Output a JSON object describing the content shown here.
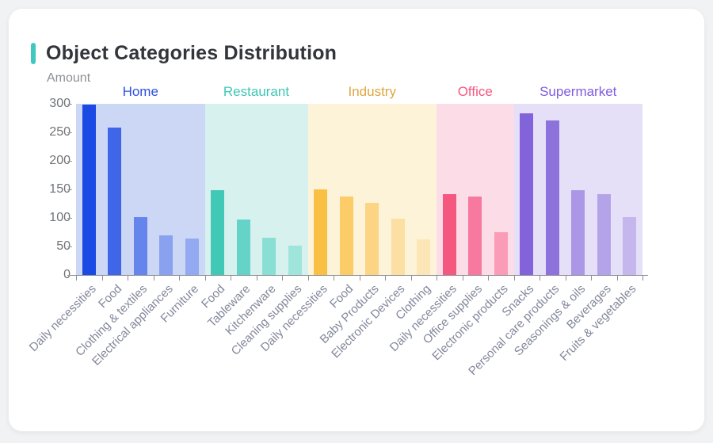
{
  "card": {
    "title": "Object Categories Distribution",
    "accent_color": "#3fc8c0"
  },
  "chart_data": {
    "type": "bar",
    "title": "Object Categories Distribution",
    "ylabel": "Amount",
    "xlabel": "",
    "ylim": [
      0,
      300
    ],
    "y_ticks": [
      0,
      50,
      100,
      150,
      200,
      250,
      300
    ],
    "grid": false,
    "legend_position": "inline-group-headers",
    "axis_color": "#8f9094",
    "groups": [
      {
        "name": "Home",
        "label_color": "#2e51e3",
        "band_color": "#ccd6f5",
        "categories": [
          "Daily necessities",
          "Food",
          "Clothing & textiles",
          "Electrical appliances",
          "Furniture"
        ],
        "values": [
          298,
          258,
          102,
          69,
          64
        ],
        "bar_colors": [
          "#1a49e3",
          "#3f65e8",
          "#6584ec",
          "#8aa1f0",
          "#93a9f1"
        ]
      },
      {
        "name": "Restaurant",
        "label_color": "#3fc7b6",
        "band_color": "#d6f1ee",
        "categories": [
          "Food",
          "Tableware",
          "Kitchenware",
          "Cleaning supplies"
        ],
        "values": [
          148,
          97,
          65,
          51
        ],
        "bar_colors": [
          "#41c8b7",
          "#65d3c7",
          "#8adfd5",
          "#9fe5dc"
        ]
      },
      {
        "name": "Industry",
        "label_color": "#dfa640",
        "band_color": "#fdf3d9",
        "categories": [
          "Daily necessities",
          "Food",
          "Baby Products",
          "Electronic Devices",
          "Clothing"
        ],
        "values": [
          150,
          138,
          126,
          99,
          63
        ],
        "bar_colors": [
          "#f9c043",
          "#fbcc67",
          "#fbd484",
          "#fcdfa2",
          "#fde6b5"
        ]
      },
      {
        "name": "Office",
        "label_color": "#f4587f",
        "band_color": "#fcdde7",
        "categories": [
          "Daily necessities",
          "Office supplies",
          "Electronic products"
        ],
        "values": [
          142,
          138,
          75
        ],
        "bar_colors": [
          "#f4587f",
          "#f779a0",
          "#fa9cb8"
        ]
      },
      {
        "name": "Supermarket",
        "label_color": "#7e5ce0",
        "band_color": "#e5e0f8",
        "categories": [
          "Snacks",
          "Personal care products",
          "Seasonings & oils",
          "Beverages",
          "Fruits & vegetables"
        ],
        "values": [
          284,
          271,
          149,
          141,
          102
        ],
        "bar_colors": [
          "#8363d9",
          "#8e72dc",
          "#ac97e6",
          "#b5a3e9",
          "#c5b6ee"
        ]
      }
    ]
  }
}
